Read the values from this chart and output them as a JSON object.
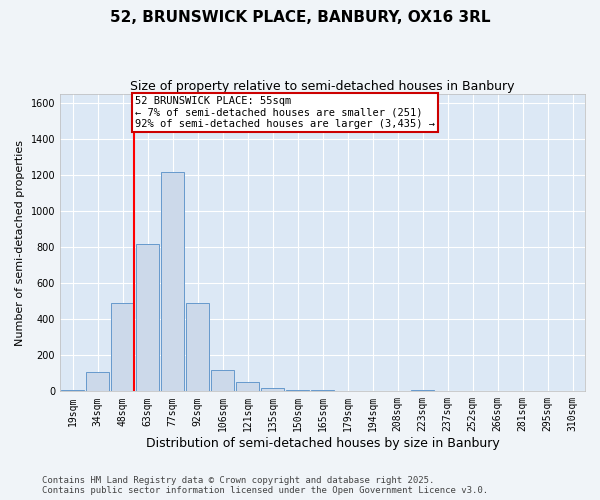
{
  "title": "52, BRUNSWICK PLACE, BANBURY, OX16 3RL",
  "subtitle": "Size of property relative to semi-detached houses in Banbury",
  "xlabel": "Distribution of semi-detached houses by size in Banbury",
  "ylabel": "Number of semi-detached properties",
  "categories": [
    "19sqm",
    "34sqm",
    "48sqm",
    "63sqm",
    "77sqm",
    "92sqm",
    "106sqm",
    "121sqm",
    "135sqm",
    "150sqm",
    "165sqm",
    "179sqm",
    "194sqm",
    "208sqm",
    "223sqm",
    "237sqm",
    "252sqm",
    "266sqm",
    "281sqm",
    "295sqm",
    "310sqm"
  ],
  "values": [
    5,
    110,
    490,
    820,
    1220,
    490,
    120,
    50,
    20,
    10,
    5,
    3,
    1,
    0,
    5,
    0,
    0,
    0,
    0,
    0,
    0
  ],
  "bar_color": "#ccd9ea",
  "bar_edge_color": "#6699cc",
  "red_line_x": 2.45,
  "annotation_text": "52 BRUNSWICK PLACE: 55sqm\n← 7% of semi-detached houses are smaller (251)\n92% of semi-detached houses are larger (3,435) →",
  "annotation_box_color": "#ffffff",
  "annotation_box_edge": "#cc0000",
  "ylim": [
    0,
    1650
  ],
  "yticks": [
    0,
    200,
    400,
    600,
    800,
    1000,
    1200,
    1400,
    1600
  ],
  "plot_bg": "#dce8f5",
  "fig_bg": "#f0f4f8",
  "footnote": "Contains HM Land Registry data © Crown copyright and database right 2025.\nContains public sector information licensed under the Open Government Licence v3.0.",
  "title_fontsize": 11,
  "subtitle_fontsize": 9,
  "xlabel_fontsize": 9,
  "ylabel_fontsize": 8,
  "tick_fontsize": 7,
  "annotation_fontsize": 7.5,
  "footnote_fontsize": 6.5
}
